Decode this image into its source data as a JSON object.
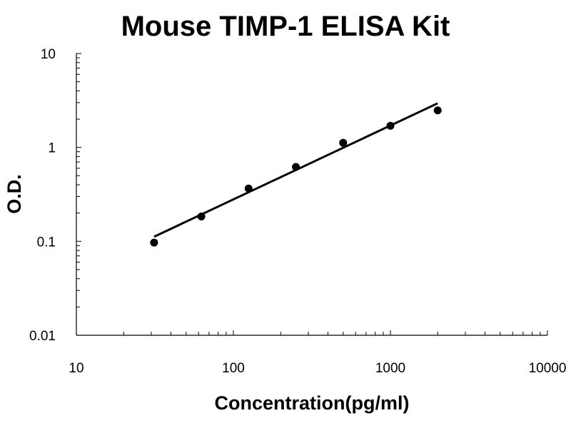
{
  "chart_data": {
    "type": "scatter",
    "title": "Mouse TIMP-1 ELISA Kit",
    "xlabel": "Concentration(pg/ml)",
    "ylabel": "O.D.",
    "x_scale": "log",
    "y_scale": "log",
    "xlim": [
      10,
      10000
    ],
    "ylim": [
      0.01,
      10
    ],
    "x_ticks": [
      "10",
      "100",
      "1000",
      "10000"
    ],
    "y_ticks": [
      "0.01",
      "0.1",
      "1",
      "10"
    ],
    "grid": false,
    "legend": "none",
    "series": [
      {
        "points": [
          {
            "x": 31.25,
            "y": 0.097
          },
          {
            "x": 62.5,
            "y": 0.184
          },
          {
            "x": 125,
            "y": 0.365
          },
          {
            "x": 250,
            "y": 0.62
          },
          {
            "x": 500,
            "y": 1.12
          },
          {
            "x": 1000,
            "y": 1.7
          },
          {
            "x": 2000,
            "y": 2.48
          }
        ]
      }
    ],
    "trendline": {
      "type": "power",
      "from": {
        "x": 31.25,
        "y": 0.112
      },
      "to": {
        "x": 2000,
        "y": 2.95
      }
    },
    "colors": {
      "axis": "#000000",
      "points": "#000000",
      "trendline": "#000000"
    }
  }
}
